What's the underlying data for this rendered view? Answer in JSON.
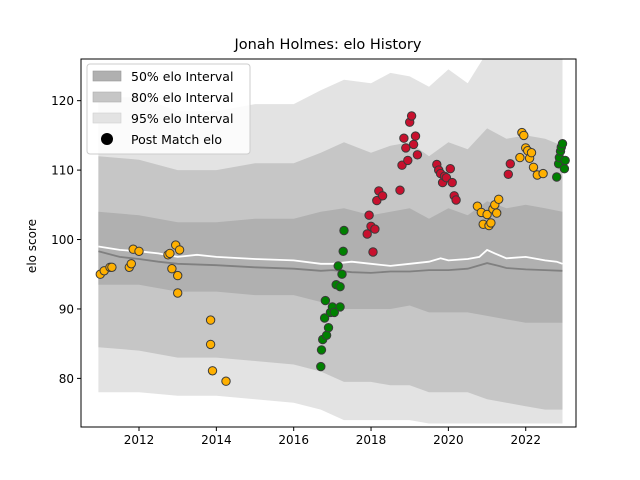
{
  "chart_data": {
    "type": "scatter",
    "title": "Jonah Holmes: elo History",
    "xlabel": "",
    "ylabel": "elo score",
    "xlim": [
      2010.5,
      2023.3
    ],
    "ylim": [
      73,
      126
    ],
    "xticks": [
      2012,
      2014,
      2016,
      2018,
      2020,
      2022
    ],
    "yticks": [
      80,
      90,
      100,
      110,
      120
    ],
    "legend_position": "top-left",
    "legend": [
      {
        "label": "50% elo Interval",
        "kind": "band",
        "color": "#b0b0b0"
      },
      {
        "label": "80% elo Interval",
        "kind": "band",
        "color": "#c6c6c6"
      },
      {
        "label": "95% elo Interval",
        "kind": "band",
        "color": "#e3e3e3"
      },
      {
        "label": "Post Match elo",
        "kind": "marker",
        "color": "#000000"
      }
    ],
    "bands": {
      "x": [
        2010.95,
        2012.0,
        2013.0,
        2014.0,
        2015.0,
        2016.0,
        2016.7,
        2017.3,
        2018.0,
        2018.5,
        2019.0,
        2019.5,
        2020.0,
        2020.5,
        2021.0,
        2021.5,
        2022.0,
        2022.5,
        2022.95
      ],
      "interval95_upper": [
        120.5,
        120.5,
        118.5,
        118.5,
        119.5,
        119.5,
        121.5,
        123.0,
        122.5,
        124.0,
        123.5,
        122.0,
        124.5,
        122.5,
        127.0,
        126.0,
        127.0,
        127.5,
        127.5
      ],
      "interval80_upper": [
        112.0,
        111.5,
        110.0,
        110.0,
        111.0,
        111.0,
        112.5,
        114.0,
        112.5,
        113.5,
        114.0,
        112.0,
        114.0,
        113.0,
        116.0,
        114.5,
        115.0,
        114.5,
        113.5
      ],
      "interval50_upper": [
        104.0,
        103.5,
        102.5,
        102.5,
        103.0,
        103.0,
        104.0,
        104.5,
        103.5,
        104.0,
        104.5,
        103.0,
        104.5,
        103.5,
        105.5,
        104.5,
        105.0,
        104.5,
        104.0
      ],
      "interval50_lower": [
        93.5,
        93.5,
        92.5,
        92.5,
        92.0,
        92.0,
        91.0,
        90.0,
        90.0,
        90.0,
        90.5,
        89.5,
        89.5,
        89.5,
        89.0,
        88.5,
        88.0,
        88.0,
        88.0
      ],
      "interval80_lower": [
        84.5,
        84.0,
        83.0,
        83.0,
        82.5,
        82.0,
        81.0,
        79.5,
        79.5,
        79.0,
        79.0,
        78.0,
        78.0,
        78.0,
        77.0,
        76.5,
        76.0,
        75.5,
        75.5
      ],
      "interval95_lower": [
        78.0,
        78.0,
        77.5,
        77.5,
        77.0,
        76.5,
        75.5,
        74.0,
        74.0,
        74.0,
        74.0,
        73.5,
        73.5,
        73.5,
        73.5,
        73.5,
        73.5,
        73.5,
        73.5
      ]
    },
    "series": [
      {
        "kind": "line",
        "color": "#ffffff",
        "x": [
          2010.95,
          2011.5,
          2012.0,
          2012.5,
          2013.0,
          2013.5,
          2014.0,
          2015.0,
          2016.0,
          2016.7,
          2017.0,
          2017.5,
          2018.0,
          2018.5,
          2019.0,
          2019.5,
          2019.8,
          2020.0,
          2020.5,
          2020.8,
          2021.0,
          2021.2,
          2021.5,
          2022.0,
          2022.5,
          2022.8,
          2022.95
        ],
        "y": [
          99.0,
          98.5,
          98.3,
          98.0,
          97.5,
          97.8,
          97.5,
          97.2,
          97.0,
          96.5,
          96.5,
          96.8,
          96.5,
          96.2,
          96.5,
          96.8,
          97.3,
          97.0,
          97.2,
          97.5,
          98.5,
          98.0,
          97.3,
          97.5,
          97.0,
          96.8,
          96.5
        ]
      },
      {
        "kind": "line",
        "color": "#808080",
        "x": [
          2010.95,
          2011.5,
          2012.0,
          2012.5,
          2013.0,
          2014.0,
          2015.0,
          2016.0,
          2016.7,
          2017.0,
          2017.5,
          2018.0,
          2018.5,
          2019.0,
          2019.5,
          2020.0,
          2020.5,
          2021.0,
          2021.3,
          2021.5,
          2022.0,
          2022.5,
          2022.95
        ],
        "y": [
          98.3,
          97.5,
          97.2,
          96.8,
          96.5,
          96.3,
          96.0,
          95.8,
          95.5,
          95.6,
          95.3,
          95.2,
          95.4,
          95.4,
          95.6,
          95.6,
          95.8,
          96.6,
          96.2,
          95.9,
          95.7,
          95.6,
          95.5
        ]
      },
      {
        "kind": "points",
        "color": "#ffb000",
        "x": [
          2011.0,
          2011.1,
          2011.25,
          2011.3,
          2011.75,
          2011.8,
          2011.85,
          2012.0,
          2012.75,
          2012.8,
          2012.85,
          2012.95,
          2013.0,
          2013.0,
          2013.05,
          2013.85,
          2013.85,
          2013.9,
          2014.25
        ],
        "y": [
          95.0,
          95.5,
          96.0,
          96.0,
          96.0,
          96.5,
          98.6,
          98.3,
          97.8,
          98.0,
          95.8,
          99.2,
          94.8,
          92.3,
          98.5,
          88.4,
          84.9,
          81.1,
          79.6
        ]
      },
      {
        "kind": "points",
        "color": "#008000",
        "x": [
          2016.7,
          2016.72,
          2016.75,
          2016.8,
          2016.82,
          2016.85,
          2016.9,
          2016.95,
          2017.0,
          2017.05,
          2017.1,
          2017.15,
          2017.2,
          2017.2,
          2017.25,
          2017.28,
          2017.3
        ],
        "y": [
          81.7,
          84.1,
          85.6,
          88.7,
          91.2,
          86.2,
          87.3,
          89.5,
          90.3,
          89.5,
          93.5,
          96.2,
          93.2,
          90.3,
          95.0,
          98.3,
          101.3
        ]
      },
      {
        "kind": "points",
        "color": "#c8102e",
        "x": [
          2017.9,
          2017.95,
          2018.0,
          2018.05,
          2018.1,
          2018.15,
          2018.2,
          2018.3,
          2018.75,
          2018.8,
          2018.85,
          2018.9,
          2018.95,
          2019.0,
          2019.05,
          2019.1,
          2019.15,
          2019.2
        ],
        "y": [
          100.8,
          103.5,
          101.9,
          98.2,
          101.5,
          105.6,
          107.0,
          106.3,
          107.1,
          110.7,
          114.6,
          113.2,
          111.4,
          116.9,
          117.8,
          113.7,
          114.9,
          112.2
        ]
      },
      {
        "kind": "points",
        "color": "#c8102e",
        "x": [
          2019.7,
          2019.75,
          2019.8,
          2019.85,
          2019.9,
          2019.95,
          2020.05,
          2020.1,
          2020.15,
          2020.2
        ],
        "y": [
          110.8,
          110.0,
          109.5,
          108.2,
          109.1,
          108.9,
          110.2,
          108.2,
          106.3,
          105.7
        ]
      },
      {
        "kind": "points",
        "color": "#ffb000",
        "x": [
          2020.75,
          2020.85,
          2020.9,
          2021.0,
          2021.05,
          2021.1,
          2021.15,
          2021.2,
          2021.25,
          2021.3
        ],
        "y": [
          104.8,
          103.9,
          102.2,
          103.6,
          102.0,
          102.4,
          104.4,
          105.0,
          103.8,
          105.8
        ]
      },
      {
        "kind": "points",
        "color": "#c8102e",
        "x": [
          2021.55,
          2021.6
        ],
        "y": [
          109.4,
          110.9
        ]
      },
      {
        "kind": "points",
        "color": "#ffb000",
        "x": [
          2021.85,
          2021.9,
          2021.95,
          2022.0,
          2022.05,
          2022.1,
          2022.15,
          2022.2,
          2022.3,
          2022.45
        ],
        "y": [
          111.8,
          115.4,
          115.0,
          113.2,
          112.8,
          111.7,
          112.5,
          110.4,
          109.3,
          109.5
        ]
      },
      {
        "kind": "points",
        "color": "#008000",
        "x": [
          2022.8,
          2022.85,
          2022.87,
          2022.9,
          2022.92,
          2022.95,
          2023.0,
          2023.02
        ],
        "y": [
          109.0,
          110.9,
          111.8,
          112.7,
          113.3,
          113.8,
          110.2,
          111.4
        ]
      }
    ]
  }
}
